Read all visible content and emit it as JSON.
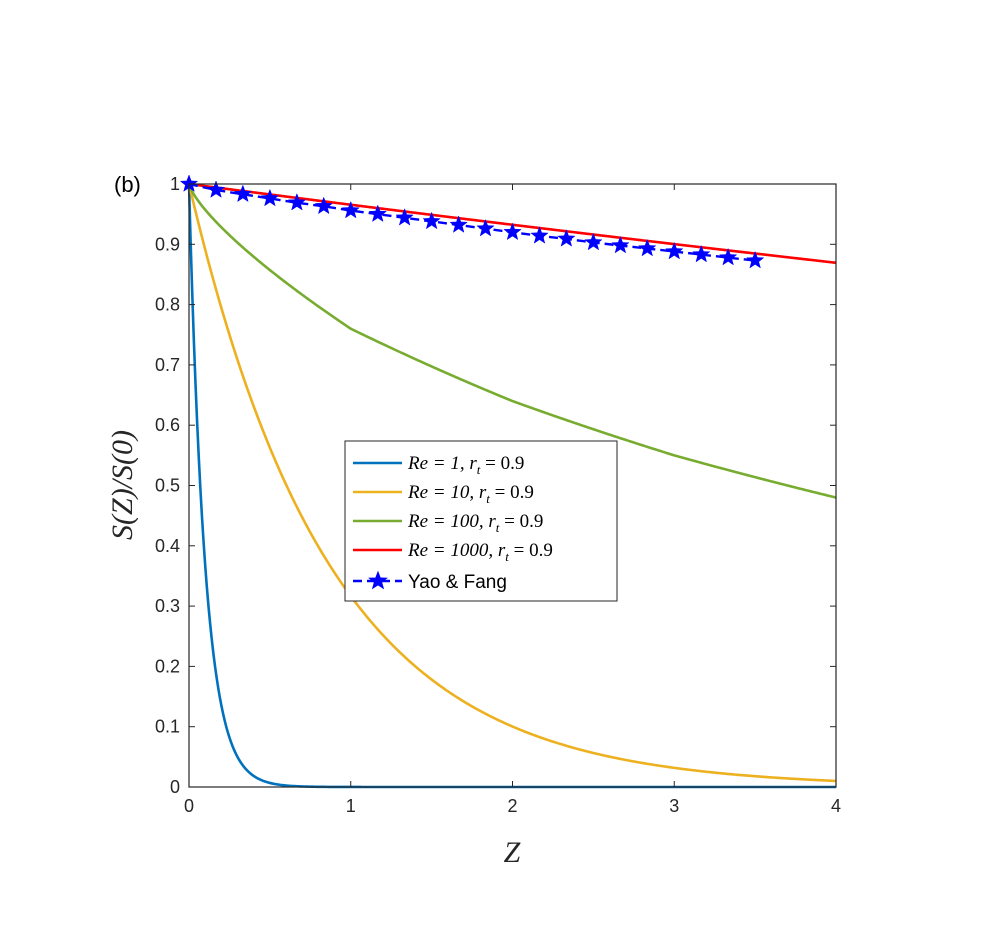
{
  "chart_data": {
    "type": "line",
    "panel_label": "(b)",
    "xlabel": "Z",
    "ylabel": "S(Z)/S(0)",
    "xlim": [
      0,
      4
    ],
    "ylim": [
      0,
      1
    ],
    "xticks": [
      0,
      1,
      2,
      3,
      4
    ],
    "xtick_labels": [
      "0",
      "1",
      "2",
      "3",
      "4"
    ],
    "yticks": [
      0,
      0.1,
      0.2,
      0.3,
      0.4,
      0.5,
      0.6,
      0.7,
      0.8,
      0.9,
      1
    ],
    "ytick_labels": [
      "0",
      "0.1",
      "0.2",
      "0.3",
      "0.4",
      "0.5",
      "0.6",
      "0.7",
      "0.8",
      "0.9",
      "1"
    ],
    "legend_position": "center",
    "series": [
      {
        "name": "Re = 1, r_t = 0.9",
        "label": "Re = 1, r",
        "sub": "t",
        "tail": " = 0.9",
        "color": "#0072BD",
        "style": "solid",
        "decay": 10.0
      },
      {
        "name": "Re = 10, r_t = 0.9",
        "label": "Re = 10, r",
        "sub": "t",
        "tail": " = 0.9",
        "color": "#EDB120",
        "style": "solid",
        "decay": 1.15
      },
      {
        "name": "Re = 100, r_t = 0.9",
        "label": "Re = 100, r",
        "sub": "t",
        "tail": " = 0.9",
        "color": "#77AC30",
        "style": "solid",
        "power_curve": [
          1,
          0.76,
          0.64,
          0.55,
          0.48
        ]
      },
      {
        "name": "Re = 1000, r_t = 0.9",
        "label": "Re = 1000, r",
        "sub": "t",
        "tail": " = 0.9",
        "color": "#FF0000",
        "style": "solid",
        "decay": 0.035
      }
    ],
    "reference": {
      "name": "Yao & Fang",
      "color": "#0000FF",
      "style": "dashed-star",
      "x": [
        0,
        0.167,
        0.333,
        0.5,
        0.667,
        0.833,
        1.0,
        1.167,
        1.333,
        1.5,
        1.667,
        1.833,
        2.0,
        2.167,
        2.333,
        2.5,
        2.667,
        2.833,
        3.0,
        3.167,
        3.333,
        3.5
      ],
      "y": [
        1.0,
        0.99,
        0.983,
        0.976,
        0.969,
        0.963,
        0.956,
        0.95,
        0.944,
        0.938,
        0.932,
        0.926,
        0.92,
        0.914,
        0.909,
        0.903,
        0.898,
        0.893,
        0.888,
        0.883,
        0.878,
        0.873
      ]
    }
  }
}
